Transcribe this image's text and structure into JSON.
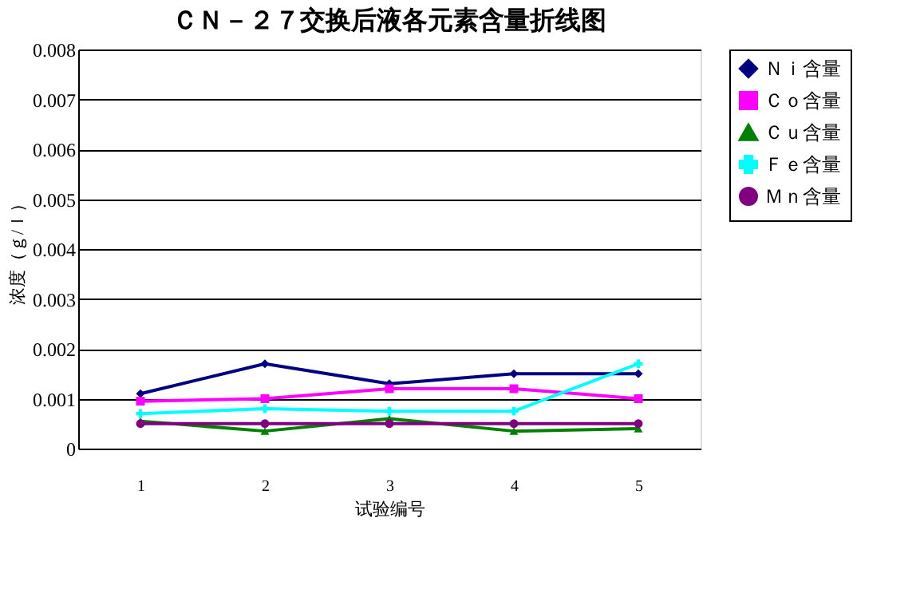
{
  "chart_data": {
    "type": "line",
    "title": "ＣＮ－２７交换后液各元素含量折线图",
    "xlabel": "试验编号",
    "ylabel": "浓度（ｇ/ｌ）",
    "categories": [
      "1",
      "2",
      "3",
      "4",
      "5"
    ],
    "series": [
      {
        "name": "Ｎｉ含量",
        "color": "#000080",
        "marker": "diamond",
        "values": [
          0.0011,
          0.0017,
          0.0013,
          0.0015,
          0.0015
        ]
      },
      {
        "name": "Ｃｏ含量",
        "color": "#ff00ff",
        "marker": "square",
        "values": [
          0.00095,
          0.001,
          0.0012,
          0.0012,
          0.001
        ]
      },
      {
        "name": "Ｃｕ含量",
        "color": "#008000",
        "marker": "triangle",
        "values": [
          0.00055,
          0.00035,
          0.0006,
          0.00035,
          0.0004
        ]
      },
      {
        "name": "Ｆｅ含量",
        "color": "#00ffff",
        "marker": "cross",
        "values": [
          0.0007,
          0.0008,
          0.00075,
          0.00075,
          0.0017
        ]
      },
      {
        "name": "Ｍｎ含量",
        "color": "#800080",
        "marker": "circle",
        "values": [
          0.0005,
          0.0005,
          0.0005,
          0.0005,
          0.0005
        ]
      }
    ],
    "ylim": [
      0,
      0.008
    ],
    "yticks": [
      0,
      0.001,
      0.002,
      0.003,
      0.004,
      0.005,
      0.006,
      0.007,
      0.008
    ],
    "grid": "y",
    "legend": "right",
    "line_style": "solid"
  }
}
